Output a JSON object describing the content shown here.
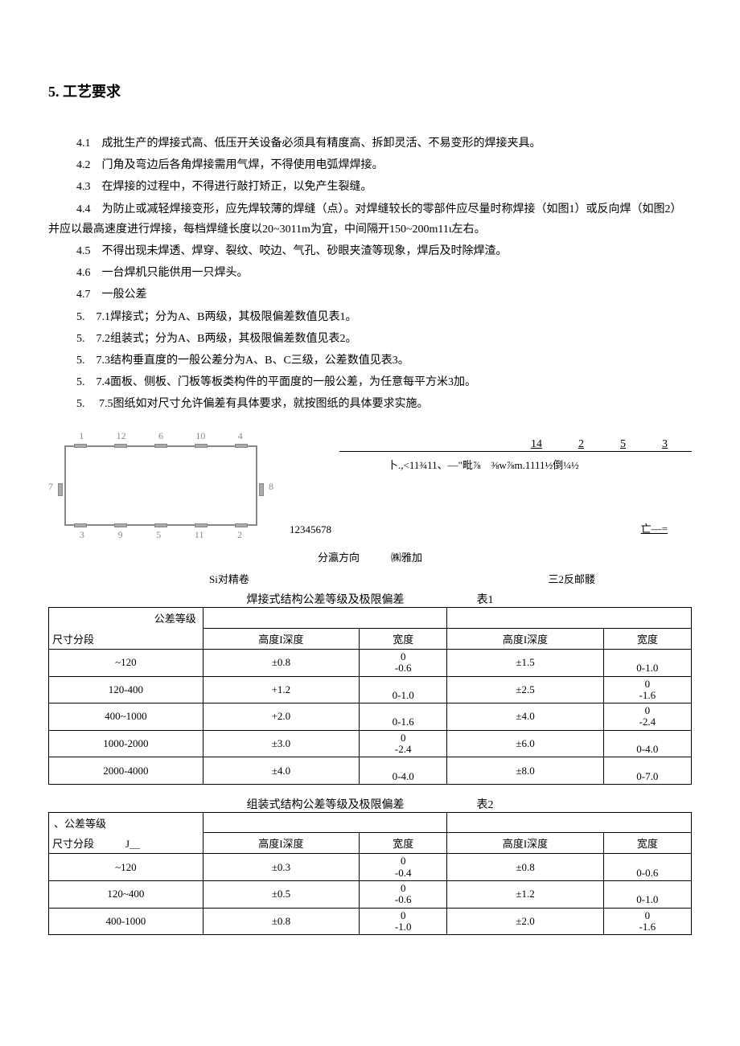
{
  "title": "5. 工艺要求",
  "paragraphs": [
    "4.1　成批生产的焊接式高、低压开关设备必须具有精度高、拆卸灵活、不易变形的焊接夹具。",
    "4.2　门角及弯边后各角焊接需用气焊，不得使用电弧焊焊接。",
    "4.3　在焊接的过程中，不得进行敲打矫正，以免产生裂缝。",
    "4.4　为防止或减轻焊接变形，应先焊较薄的焊缝（点）。对焊缝较长的零部件应尽量时称焊接（如图1）或反向焊（如图2）并应以最高速度进行焊接，每档焊缝长度以20~3011m为宜，中间隔开150~200m11ι左右。",
    "4.5　不得出现未焊透、焊穿、裂纹、咬边、气孔、砂眼夹渣等现象，焊后及时除焊渣。",
    "4.6　一台焊机只能供用一只焊头。",
    "4.7　一般公差",
    "5.　7.1焊接式；分为A、B两级，其极限偏差数值见表1。",
    "5.　7.2组装式；分为A、B两级，其极限偏差数值见表2。",
    "5.　7.3结构垂直度的一般公差分为A、B、C三级，公差数值见表3。",
    "5.　7.4面板、侧板、门板等板类构件的平面度的一般公差，为任意每平方米3加。",
    "5.　 7.5图纸如对尺寸允许偏差有具体要求，就按图纸的具体要求实施。"
  ],
  "figure1": {
    "top_numbers": [
      "1",
      "12",
      "6",
      "10",
      "4"
    ],
    "bottom_numbers": [
      "3",
      "9",
      "5",
      "11",
      "2"
    ],
    "left_label": "7",
    "right_label": "8",
    "seq_right": "12345678"
  },
  "figure2": {
    "top_row": [
      "14",
      "2",
      "5",
      "3"
    ],
    "garble": "卜.,<11¾11、—\"毗⅞　⅜w⅞m.1111½倒¼½",
    "right_mark": "亡—="
  },
  "direction_label": "分瀛方向　　　㈱雅加",
  "sub_label_left": "Si对精卷",
  "sub_label_right": "三2反邮髅",
  "table1": {
    "title": "焊接式结构公差等级及极限偏差",
    "table_no": "表1",
    "corner_top": "公差等级",
    "corner_bottom": "尺寸分段",
    "headers": [
      "高度I深度",
      "宽度",
      "高度I深度",
      "宽度"
    ],
    "rows": [
      {
        "seg": "~120",
        "c1": "±0.8",
        "c2": "0\n-0.6",
        "c3": "±1.5",
        "c4": "\n0-1.0"
      },
      {
        "seg": "120-400",
        "c1": "+1.2",
        "c2": "\n0-1.0",
        "c3": "±2.5",
        "c4": "0\n-1.6"
      },
      {
        "seg": "400~1000",
        "c1": "+2.0",
        "c2": "\n0-1.6",
        "c3": "±4.0",
        "c4": "0\n-2.4"
      },
      {
        "seg": "1000-2000",
        "c1": "±3.0",
        "c2": "0\n-2.4",
        "c3": "±6.0",
        "c4": "\n0-4.0"
      },
      {
        "seg": "2000-4000",
        "c1": "±4.0",
        "c2": "\n0-4.0",
        "c3": "±8.0",
        "c4": "\n0-7.0"
      }
    ]
  },
  "table2": {
    "title": "组装式结构公差等级及极限偏差",
    "table_no": "表2",
    "corner_top": "、公差等级",
    "corner_bottom": "尺寸分段　　　J＿",
    "headers": [
      "高度I深度",
      "宽度",
      "高度I深度",
      "宽度"
    ],
    "rows": [
      {
        "seg": "~120",
        "c1": "±0.3",
        "c2": "0\n-0.4",
        "c3": "±0.8",
        "c4": "\n0-0.6"
      },
      {
        "seg": "120~400",
        "c1": "±0.5",
        "c2": "0\n-0.6",
        "c3": "±1.2",
        "c4": "\n0-1.0"
      },
      {
        "seg": "400-1000",
        "c1": "±0.8",
        "c2": "0\n-1.0",
        "c3": "±2.0",
        "c4": "0\n-1.6"
      }
    ]
  }
}
